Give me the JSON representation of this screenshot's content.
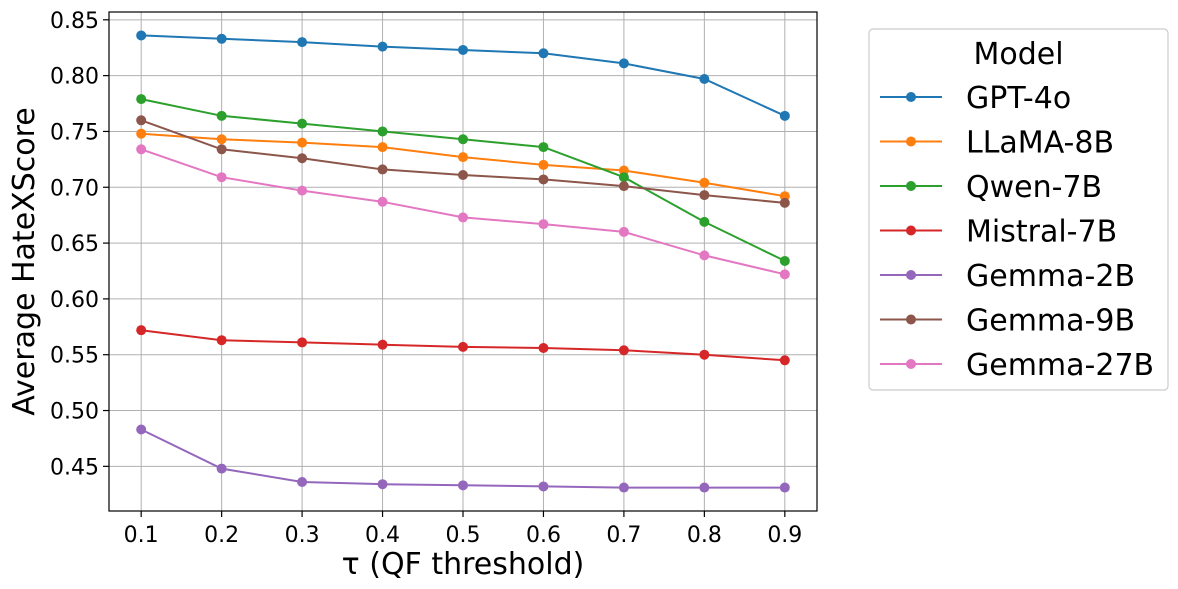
{
  "chart_data": {
    "type": "line",
    "title": "",
    "xlabel": "τ (QF threshold)",
    "ylabel": "Average HateXScore",
    "x": [
      0.1,
      0.2,
      0.3,
      0.4,
      0.5,
      0.6,
      0.7,
      0.8,
      0.9
    ],
    "x_tick_labels": [
      "0.1",
      "0.2",
      "0.3",
      "0.4",
      "0.5",
      "0.6",
      "0.7",
      "0.8",
      "0.9"
    ],
    "y_ticks": [
      0.45,
      0.5,
      0.55,
      0.6,
      0.65,
      0.7,
      0.75,
      0.8,
      0.85
    ],
    "y_tick_labels": [
      "0.45",
      "0.50",
      "0.55",
      "0.60",
      "0.65",
      "0.70",
      "0.75",
      "0.80",
      "0.85"
    ],
    "xlim": [
      0.06,
      0.94
    ],
    "ylim": [
      0.41,
      0.857
    ],
    "grid": true,
    "legend_title": "Model",
    "legend_position": "outside-right-top",
    "series": [
      {
        "name": "GPT-4o",
        "color": "#1f77b4",
        "values": [
          0.836,
          0.833,
          0.83,
          0.826,
          0.823,
          0.82,
          0.811,
          0.797,
          0.764
        ]
      },
      {
        "name": "LLaMA-8B",
        "color": "#ff7f0e",
        "values": [
          0.748,
          0.743,
          0.74,
          0.736,
          0.727,
          0.72,
          0.715,
          0.704,
          0.692
        ]
      },
      {
        "name": "Qwen-7B",
        "color": "#2ca02c",
        "values": [
          0.779,
          0.764,
          0.757,
          0.75,
          0.743,
          0.736,
          0.709,
          0.669,
          0.634
        ]
      },
      {
        "name": "Mistral-7B",
        "color": "#d62728",
        "values": [
          0.572,
          0.563,
          0.561,
          0.559,
          0.557,
          0.556,
          0.554,
          0.55,
          0.545
        ]
      },
      {
        "name": "Gemma-2B",
        "color": "#9467bd",
        "values": [
          0.483,
          0.448,
          0.436,
          0.434,
          0.433,
          0.432,
          0.431,
          0.431,
          0.431
        ]
      },
      {
        "name": "Gemma-9B",
        "color": "#8c564b",
        "values": [
          0.76,
          0.734,
          0.726,
          0.716,
          0.711,
          0.707,
          0.701,
          0.693,
          0.686
        ]
      },
      {
        "name": "Gemma-27B",
        "color": "#e377c2",
        "values": [
          0.734,
          0.709,
          0.697,
          0.687,
          0.673,
          0.667,
          0.66,
          0.639,
          0.622
        ]
      }
    ]
  }
}
